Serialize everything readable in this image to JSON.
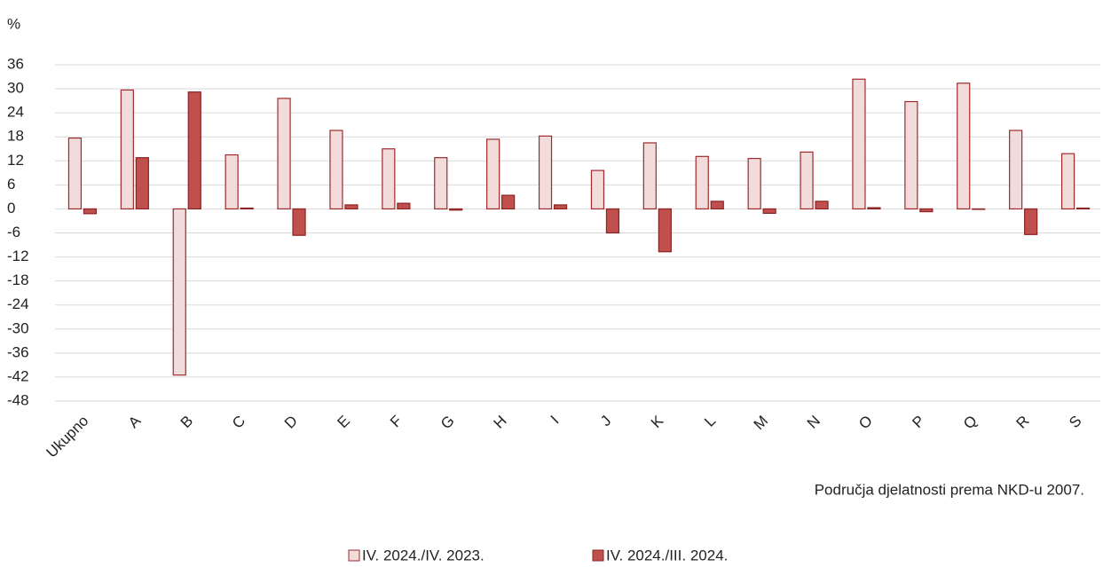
{
  "chart_data": {
    "type": "bar",
    "y_label": "%",
    "x_label": "Područja djelatnosti prema NKD-u 2007.",
    "categories": [
      "Ukupno",
      "A",
      "B",
      "C",
      "D",
      "E",
      "F",
      "G",
      "H",
      "I",
      "J",
      "K",
      "L",
      "M",
      "N",
      "O",
      "P",
      "Q",
      "R",
      "S"
    ],
    "series": [
      {
        "name": "IV. 2024./IV. 2023.",
        "color": "#f2dcdb",
        "values": [
          17.7,
          29.7,
          -41.5,
          13.5,
          27.6,
          19.6,
          15.0,
          12.8,
          17.4,
          18.2,
          9.6,
          16.5,
          13.1,
          12.6,
          14.2,
          32.4,
          26.8,
          31.4,
          19.6,
          13.8
        ]
      },
      {
        "name": "IV. 2024./III. 2024.",
        "color": "#c0504d",
        "values": [
          -1.2,
          12.8,
          29.2,
          0.2,
          -6.6,
          1.0,
          1.4,
          -0.3,
          3.4,
          1.0,
          -6.0,
          -10.7,
          1.9,
          -1.1,
          1.9,
          0.3,
          -0.7,
          0.0,
          -6.4,
          0.2
        ]
      }
    ],
    "ylim": [
      -48,
      36
    ],
    "yticks": [
      -48,
      -42,
      -36,
      -30,
      -24,
      -18,
      -12,
      -6,
      0,
      6,
      12,
      18,
      24,
      30,
      36
    ],
    "grid": true
  }
}
